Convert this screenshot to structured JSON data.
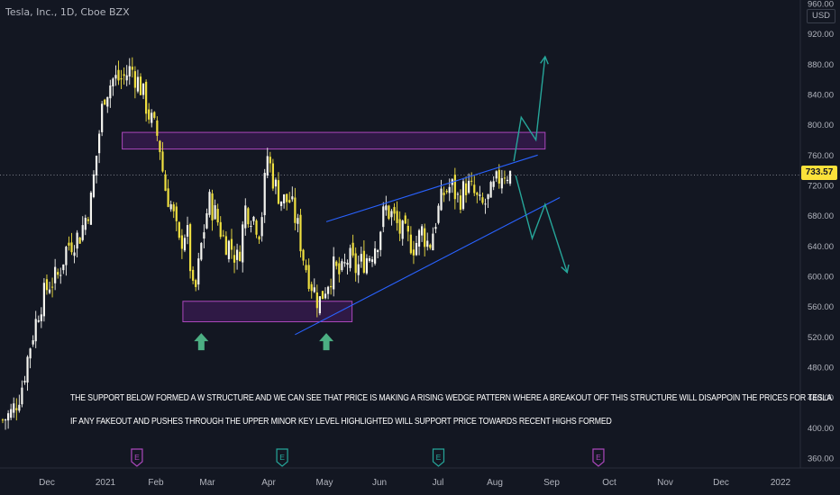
{
  "header": {
    "symbol_title": "Tesla, Inc., 1D, Cboe BZX",
    "currency": "USD"
  },
  "price_tag": "733.57",
  "annotations": {
    "line1": "THE SUPPORT BELOW FORMED A W STRUCTURE AND WE CAN SEE THAT PRICE IS MAKING A RISING WEDGE PATTERN WHERE A BREAKOUT OFF THIS STRUCTURE WILL DISAPPOIN THE PRICES FOR TESLA",
    "line2": "IF ANY FAKEOUT AND PUSHES THROUGH THE UPPER MINOR KEY LEVEL HIGHLIGHTED WILL SUPPORT PRICE TOWARDS RECENT HIGHS FORMED"
  },
  "colors": {
    "background": "#131722",
    "candle_up": "#f5f5f0",
    "candle_down": "#f0e040",
    "zone_fill": "#7b1fa2",
    "zone_border": "#ab47bc",
    "wedge_line": "#2962ff",
    "bull_arrow": "#4caf83",
    "projection": "#26a69a",
    "earnings_E": "#26a69a",
    "dividend_E": "#ab47bc"
  },
  "chart_data": {
    "type": "candlestick",
    "ylim": [
      360,
      960
    ],
    "yticks": [
      360,
      400,
      440,
      480,
      520,
      560,
      600,
      640,
      680,
      720,
      760,
      800,
      840,
      880,
      920,
      960
    ],
    "ytick_labels": [
      "360.00",
      "400.00",
      "440.00",
      "480.00",
      "520.00",
      "560.00",
      "600.00",
      "640.00",
      "680.00",
      "720.00",
      "760.00",
      "800.00",
      "840.00",
      "880.00",
      "920.00",
      "960.00"
    ],
    "x_labels": [
      "Dec",
      "2021",
      "Feb",
      "Mar",
      "Apr",
      "May",
      "Jun",
      "Jul",
      "Aug",
      "Sep",
      "Oct",
      "Nov",
      "Dec",
      "2022"
    ],
    "last_price": 733.57,
    "close_path": [
      {
        "t": 0,
        "p": 410
      },
      {
        "t": 5,
        "p": 420
      },
      {
        "t": 10,
        "p": 450
      },
      {
        "t": 15,
        "p": 510
      },
      {
        "t": 20,
        "p": 560
      },
      {
        "t": 25,
        "p": 590
      },
      {
        "t": 30,
        "p": 600
      },
      {
        "t": 35,
        "p": 640
      },
      {
        "t": 42,
        "p": 655
      },
      {
        "t": 48,
        "p": 700
      },
      {
        "t": 55,
        "p": 840
      },
      {
        "t": 60,
        "p": 860
      },
      {
        "t": 65,
        "p": 860
      },
      {
        "t": 70,
        "p": 875
      },
      {
        "t": 75,
        "p": 850
      },
      {
        "t": 80,
        "p": 810
      },
      {
        "t": 85,
        "p": 780
      },
      {
        "t": 88,
        "p": 720
      },
      {
        "t": 92,
        "p": 690
      },
      {
        "t": 96,
        "p": 640
      },
      {
        "t": 100,
        "p": 665
      },
      {
        "t": 104,
        "p": 565
      },
      {
        "t": 108,
        "p": 640
      },
      {
        "t": 112,
        "p": 700
      },
      {
        "t": 116,
        "p": 680
      },
      {
        "t": 120,
        "p": 650
      },
      {
        "t": 124,
        "p": 640
      },
      {
        "t": 128,
        "p": 620
      },
      {
        "t": 132,
        "p": 690
      },
      {
        "t": 136,
        "p": 680
      },
      {
        "t": 140,
        "p": 660
      },
      {
        "t": 144,
        "p": 760
      },
      {
        "t": 148,
        "p": 720
      },
      {
        "t": 152,
        "p": 700
      },
      {
        "t": 156,
        "p": 700
      },
      {
        "t": 160,
        "p": 670
      },
      {
        "t": 164,
        "p": 620
      },
      {
        "t": 168,
        "p": 590
      },
      {
        "t": 172,
        "p": 565
      },
      {
        "t": 176,
        "p": 590
      },
      {
        "t": 180,
        "p": 610
      },
      {
        "t": 184,
        "p": 600
      },
      {
        "t": 188,
        "p": 625
      },
      {
        "t": 192,
        "p": 610
      },
      {
        "t": 196,
        "p": 620
      },
      {
        "t": 200,
        "p": 630
      },
      {
        "t": 204,
        "p": 650
      },
      {
        "t": 208,
        "p": 690
      },
      {
        "t": 212,
        "p": 680
      },
      {
        "t": 216,
        "p": 660
      },
      {
        "t": 220,
        "p": 650
      },
      {
        "t": 224,
        "p": 640
      },
      {
        "t": 228,
        "p": 660
      },
      {
        "t": 232,
        "p": 640
      },
      {
        "t": 236,
        "p": 680
      },
      {
        "t": 240,
        "p": 710
      },
      {
        "t": 244,
        "p": 720
      },
      {
        "t": 248,
        "p": 700
      },
      {
        "t": 252,
        "p": 720
      },
      {
        "t": 256,
        "p": 710
      },
      {
        "t": 260,
        "p": 690
      },
      {
        "t": 264,
        "p": 700
      },
      {
        "t": 268,
        "p": 720
      },
      {
        "t": 272,
        "p": 740
      },
      {
        "t": 276,
        "p": 735
      }
    ],
    "zones": [
      {
        "name": "upper-key-level",
        "t_start": 65,
        "t_end": 295,
        "p_low": 768,
        "p_high": 790
      },
      {
        "name": "support-zone",
        "t_start": 98,
        "t_end": 190,
        "p_low": 540,
        "p_high": 567
      }
    ],
    "wedge": {
      "upper": [
        {
          "t": 176,
          "p": 672
        },
        {
          "t": 291,
          "p": 760
        }
      ],
      "lower": [
        {
          "t": 159,
          "p": 523
        },
        {
          "t": 303,
          "p": 704
        }
      ]
    },
    "bull_arrows": [
      {
        "t": 108,
        "p": 525
      },
      {
        "t": 176,
        "p": 525
      }
    ],
    "projection_up": [
      {
        "t": 278,
        "p": 752
      },
      {
        "t": 282,
        "p": 810
      },
      {
        "t": 290,
        "p": 780
      },
      {
        "t": 295,
        "p": 890
      }
    ],
    "projection_down": [
      {
        "t": 279,
        "p": 733
      },
      {
        "t": 288,
        "p": 650
      },
      {
        "t": 295,
        "p": 695
      },
      {
        "t": 307,
        "p": 605
      }
    ],
    "event_markers": [
      {
        "t": 73,
        "type": "dividend"
      },
      {
        "t": 152,
        "type": "earnings"
      },
      {
        "t": 237,
        "type": "earnings"
      },
      {
        "t": 324,
        "type": "dividend"
      }
    ]
  }
}
